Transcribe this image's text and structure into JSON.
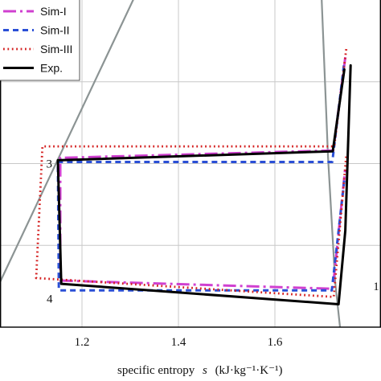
{
  "chart_data": {
    "type": "line",
    "title": "",
    "xlabel": "specific entropy",
    "xlabel_symbol": "s",
    "xlabel_unit": "(kJ·kg⁻¹·K⁻¹)",
    "ylabel": "",
    "xlim": [
      1.03,
      1.82
    ],
    "ylim": [
      0,
      4
    ],
    "x_ticks": [
      "1.2",
      "1.4",
      "1.6"
    ],
    "grid": true,
    "legend_position": "top-left",
    "saturation_curves": [
      {
        "name": "liquid-line",
        "color": "#8c9494",
        "points": [
          [
            1.03,
            0.55
          ],
          [
            1.13,
            1.8
          ],
          [
            1.23,
            3.05
          ],
          [
            1.33,
            4.3
          ]
        ]
      },
      {
        "name": "vapor-line",
        "color": "#8c9494",
        "points": [
          [
            1.695,
            4.3
          ],
          [
            1.71,
            2.1
          ],
          [
            1.725,
            0.55
          ],
          [
            1.735,
            0.0
          ]
        ]
      }
    ],
    "series": [
      {
        "name": "Sim-I",
        "color": "#d040d0",
        "dash": "16,5,3,5",
        "width": 3,
        "points": [
          [
            1.746,
            3.3
          ],
          [
            1.721,
            2.16
          ],
          [
            1.155,
            2.07
          ],
          [
            1.155,
            0.57
          ],
          [
            1.72,
            0.47
          ],
          [
            1.746,
            1.95
          ]
        ]
      },
      {
        "name": "Sim-II",
        "color": "#2a4fd6",
        "dash": "7,5",
        "width": 3,
        "points": [
          [
            1.743,
            3.2
          ],
          [
            1.719,
            2.02
          ],
          [
            1.15,
            2.02
          ],
          [
            1.152,
            0.45
          ],
          [
            1.718,
            0.45
          ],
          [
            1.744,
            1.8
          ]
        ]
      },
      {
        "name": "Sim-III",
        "color": "#d42020",
        "dash": "1.8,3.6",
        "width": 2.8,
        "points": [
          [
            1.748,
            3.4
          ],
          [
            1.723,
            2.21
          ],
          [
            1.118,
            2.21
          ],
          [
            1.105,
            0.6
          ],
          [
            1.722,
            0.37
          ],
          [
            1.748,
            2.1
          ]
        ]
      },
      {
        "name": "Exp.",
        "color": "#000000",
        "dash": "",
        "width": 3,
        "points": [
          [
            1.744,
            3.15
          ],
          [
            1.72,
            2.15
          ],
          [
            1.15,
            2.04
          ],
          [
            1.157,
            0.53
          ],
          [
            1.732,
            0.28
          ],
          [
            1.746,
            1.18
          ],
          [
            1.757,
            3.2
          ]
        ]
      }
    ],
    "state_points": [
      {
        "label": "3",
        "x": 1.132,
        "y": 2.0
      },
      {
        "label": "4",
        "x": 1.133,
        "y": 0.35
      },
      {
        "label": "1",
        "x": 1.81,
        "y": 0.5
      }
    ]
  }
}
